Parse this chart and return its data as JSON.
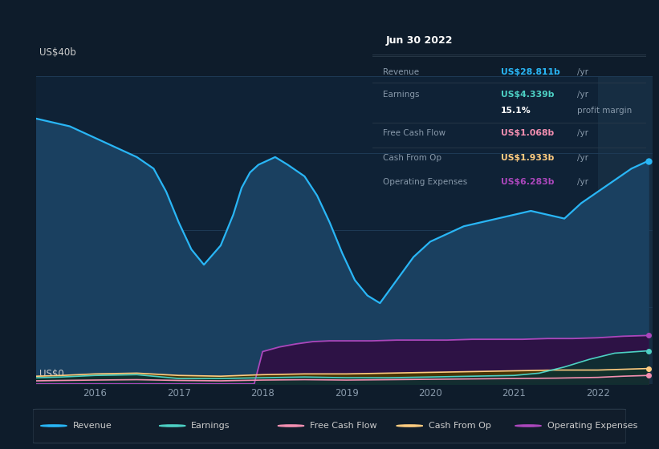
{
  "bg_color": "#0e1c2b",
  "plot_bg": "#0f2236",
  "highlight_bg": "#162d42",
  "ylabel_text": "US$40b",
  "y0_text": "US$0",
  "legend_items": [
    "Revenue",
    "Earnings",
    "Free Cash Flow",
    "Cash From Op",
    "Operating Expenses"
  ],
  "legend_colors": [
    "#29b6f6",
    "#4dd0c4",
    "#f48fb1",
    "#ffcc80",
    "#ab47bc"
  ],
  "info_box": {
    "date": "Jun 30 2022",
    "rows": [
      {
        "label": "Revenue",
        "value": "US$28.811b",
        "suffix": "/yr",
        "color": "#29b6f6"
      },
      {
        "label": "Earnings",
        "value": "US$4.339b",
        "suffix": "/yr",
        "color": "#4dd0c4"
      },
      {
        "label": "",
        "value": "15.1%",
        "suffix": "profit margin",
        "color": "#ffffff"
      },
      {
        "label": "Free Cash Flow",
        "value": "US$1.068b",
        "suffix": "/yr",
        "color": "#f48fb1"
      },
      {
        "label": "Cash From Op",
        "value": "US$1.933b",
        "suffix": "/yr",
        "color": "#ffcc80"
      },
      {
        "label": "Operating Expenses",
        "value": "US$6.283b",
        "suffix": "/yr",
        "color": "#ab47bc"
      }
    ]
  },
  "x_ticks": [
    2016,
    2017,
    2018,
    2019,
    2020,
    2021,
    2022
  ],
  "revenue_x": [
    2015.3,
    2015.5,
    2015.7,
    2015.9,
    2016.1,
    2016.3,
    2016.5,
    2016.7,
    2016.85,
    2017.0,
    2017.15,
    2017.3,
    2017.5,
    2017.65,
    2017.75,
    2017.85,
    2017.95,
    2018.05,
    2018.15,
    2018.3,
    2018.5,
    2018.65,
    2018.8,
    2018.95,
    2019.1,
    2019.25,
    2019.4,
    2019.6,
    2019.8,
    2020.0,
    2020.2,
    2020.4,
    2020.6,
    2020.8,
    2021.0,
    2021.2,
    2021.4,
    2021.6,
    2021.8,
    2022.0,
    2022.2,
    2022.4,
    2022.6
  ],
  "revenue_y": [
    34.5,
    34.0,
    33.5,
    32.5,
    31.5,
    30.5,
    29.5,
    28.0,
    25.0,
    21.0,
    17.5,
    15.5,
    18.0,
    22.0,
    25.5,
    27.5,
    28.5,
    29.0,
    29.5,
    28.5,
    27.0,
    24.5,
    21.0,
    17.0,
    13.5,
    11.5,
    10.5,
    13.5,
    16.5,
    18.5,
    19.5,
    20.5,
    21.0,
    21.5,
    22.0,
    22.5,
    22.0,
    21.5,
    23.5,
    25.0,
    26.5,
    28.0,
    29.0
  ],
  "revenue_color": "#29b6f6",
  "revenue_fill": "#1a4060",
  "op_exp_x": [
    2015.3,
    2015.6,
    2016.0,
    2016.5,
    2017.0,
    2017.5,
    2017.75,
    2017.9,
    2018.0,
    2018.2,
    2018.4,
    2018.6,
    2018.8,
    2019.0,
    2019.3,
    2019.6,
    2019.9,
    2020.2,
    2020.5,
    2020.8,
    2021.1,
    2021.4,
    2021.7,
    2022.0,
    2022.3,
    2022.6
  ],
  "op_exp_y": [
    0.0,
    0.0,
    0.0,
    0.0,
    0.0,
    0.0,
    0.0,
    0.0,
    4.2,
    4.8,
    5.2,
    5.5,
    5.6,
    5.6,
    5.6,
    5.7,
    5.7,
    5.7,
    5.8,
    5.8,
    5.8,
    5.9,
    5.9,
    6.0,
    6.2,
    6.3
  ],
  "op_exp_color": "#ab47bc",
  "op_exp_fill": "#2d1245",
  "earn_x": [
    2015.3,
    2015.6,
    2016.0,
    2016.5,
    2017.0,
    2017.5,
    2018.0,
    2018.5,
    2019.0,
    2019.5,
    2020.0,
    2020.5,
    2021.0,
    2021.3,
    2021.6,
    2021.9,
    2022.2,
    2022.6
  ],
  "earn_y": [
    0.8,
    0.9,
    1.1,
    1.2,
    0.7,
    0.7,
    0.8,
    0.9,
    0.8,
    0.8,
    0.9,
    1.0,
    1.1,
    1.4,
    2.2,
    3.2,
    4.0,
    4.3
  ],
  "earn_color": "#4dd0c4",
  "earn_fill": "#0d3030",
  "fcf_x": [
    2015.3,
    2015.6,
    2016.0,
    2016.5,
    2017.0,
    2017.5,
    2018.0,
    2018.5,
    2019.0,
    2019.5,
    2020.0,
    2020.5,
    2021.0,
    2021.5,
    2022.0,
    2022.3,
    2022.6
  ],
  "fcf_y": [
    0.4,
    0.45,
    0.5,
    0.55,
    0.45,
    0.4,
    0.5,
    0.55,
    0.5,
    0.55,
    0.6,
    0.65,
    0.7,
    0.75,
    0.85,
    1.0,
    1.1
  ],
  "fcf_color": "#f48fb1",
  "fcf_fill": "#5a1535",
  "cop_x": [
    2015.3,
    2015.6,
    2016.0,
    2016.5,
    2017.0,
    2017.5,
    2018.0,
    2018.5,
    2019.0,
    2019.5,
    2020.0,
    2020.5,
    2021.0,
    2021.5,
    2022.0,
    2022.3,
    2022.6
  ],
  "cop_y": [
    1.0,
    1.1,
    1.3,
    1.4,
    1.1,
    1.0,
    1.2,
    1.3,
    1.3,
    1.4,
    1.5,
    1.6,
    1.7,
    1.8,
    1.8,
    1.9,
    2.0
  ],
  "cop_color": "#ffcc80",
  "cop_fill": "#4a3800",
  "highlight_x_start": 2022.0,
  "highlight_x_end": 2022.65,
  "ylim": [
    0,
    40
  ],
  "xlim": [
    2015.3,
    2022.65
  ]
}
